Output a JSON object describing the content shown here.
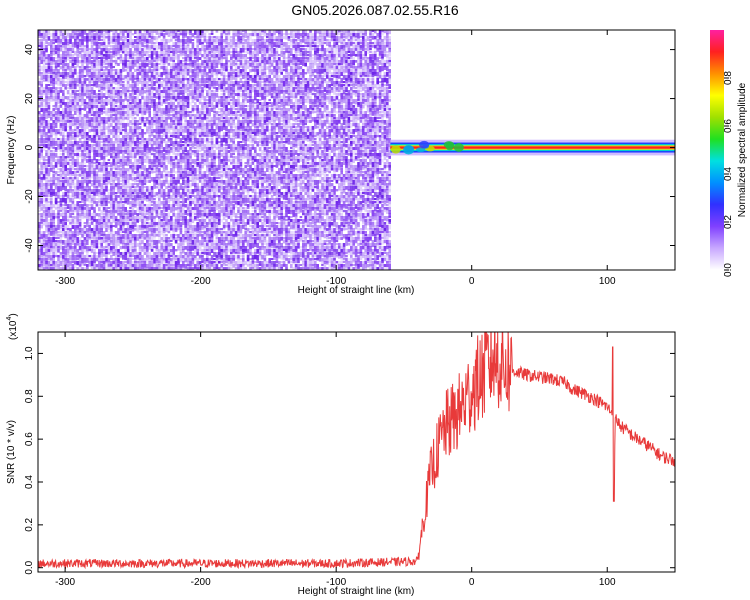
{
  "figure": {
    "title": "GN05.2026.087.02.55.R16"
  },
  "colors": {
    "noise": "#7a2ff0",
    "signal_red": "#e83a3a",
    "axis": "#000000",
    "colormap": [
      "#ffffff",
      "#c8a8ff",
      "#8040ff",
      "#3030ff",
      "#0090ff",
      "#00e0e0",
      "#20e020",
      "#a0e000",
      "#ffff00",
      "#ff9000",
      "#ff2020",
      "#ff20a0"
    ]
  },
  "chart_data": [
    {
      "type": "heatmap",
      "title": "",
      "xlabel": "Height of straight line (km)",
      "ylabel": "Frequency (Hz)",
      "xlim": [
        -320,
        150
      ],
      "ylim": [
        -50,
        48
      ],
      "xticks": [
        -300,
        -200,
        -100,
        0,
        100
      ],
      "yticks": [
        -40,
        -20,
        0,
        20,
        40
      ],
      "tick_labels_x": [
        "-300",
        "-200",
        "-100",
        "0",
        "100"
      ],
      "tick_labels_y": [
        "-40",
        "-20",
        "0",
        "20",
        "40"
      ],
      "grid": false,
      "noise_region_x": [
        -320,
        -60
      ],
      "signal_band": {
        "x": [
          -60,
          150
        ],
        "frequency_center": 0,
        "halfwidth": 2
      },
      "colorbar": {
        "label": "Normalized spectral amplitude",
        "range": [
          0,
          1
        ],
        "ticks": [
          0.0,
          0.2,
          0.4,
          0.6,
          0.8
        ],
        "tick_labels": [
          "0.0",
          "0.2",
          "0.4",
          "0.6",
          "0.8"
        ]
      }
    },
    {
      "type": "line",
      "title": "",
      "xlabel": "Height of straight line (km)",
      "ylabel": "SNR (10 * v/v)",
      "scale_label": "(x10",
      "scale_exponent": "4",
      "scale_close": ")",
      "xlim": [
        -320,
        150
      ],
      "ylim": [
        -0.02,
        1.1
      ],
      "xticks": [
        -300,
        -200,
        -100,
        0,
        100
      ],
      "yticks": [
        0.0,
        0.2,
        0.4,
        0.6,
        0.8,
        1.0
      ],
      "tick_labels_x": [
        "-300",
        "-200",
        "-100",
        "0",
        "100"
      ],
      "tick_labels_y": [
        "0.0",
        "0.2",
        "0.4",
        "0.6",
        "0.8",
        "1.0"
      ],
      "grid": false,
      "series": [
        {
          "color": "#e83a3a",
          "x": [
            -320,
            -100,
            -40,
            -35,
            -30,
            -20,
            -10,
            0,
            10,
            15,
            20,
            25,
            30,
            40,
            50,
            60,
            70,
            75,
            80,
            90,
            100,
            104,
            105,
            106,
            110,
            120,
            130,
            140,
            150
          ],
          "y": [
            0.02,
            0.02,
            0.03,
            0.25,
            0.45,
            0.65,
            0.72,
            0.83,
            0.92,
            0.98,
            0.97,
            0.94,
            0.92,
            0.9,
            0.89,
            0.88,
            0.86,
            0.83,
            0.82,
            0.79,
            0.75,
            0.72,
            0.31,
            0.7,
            0.66,
            0.61,
            0.57,
            0.52,
            0.5
          ]
        }
      ]
    }
  ]
}
